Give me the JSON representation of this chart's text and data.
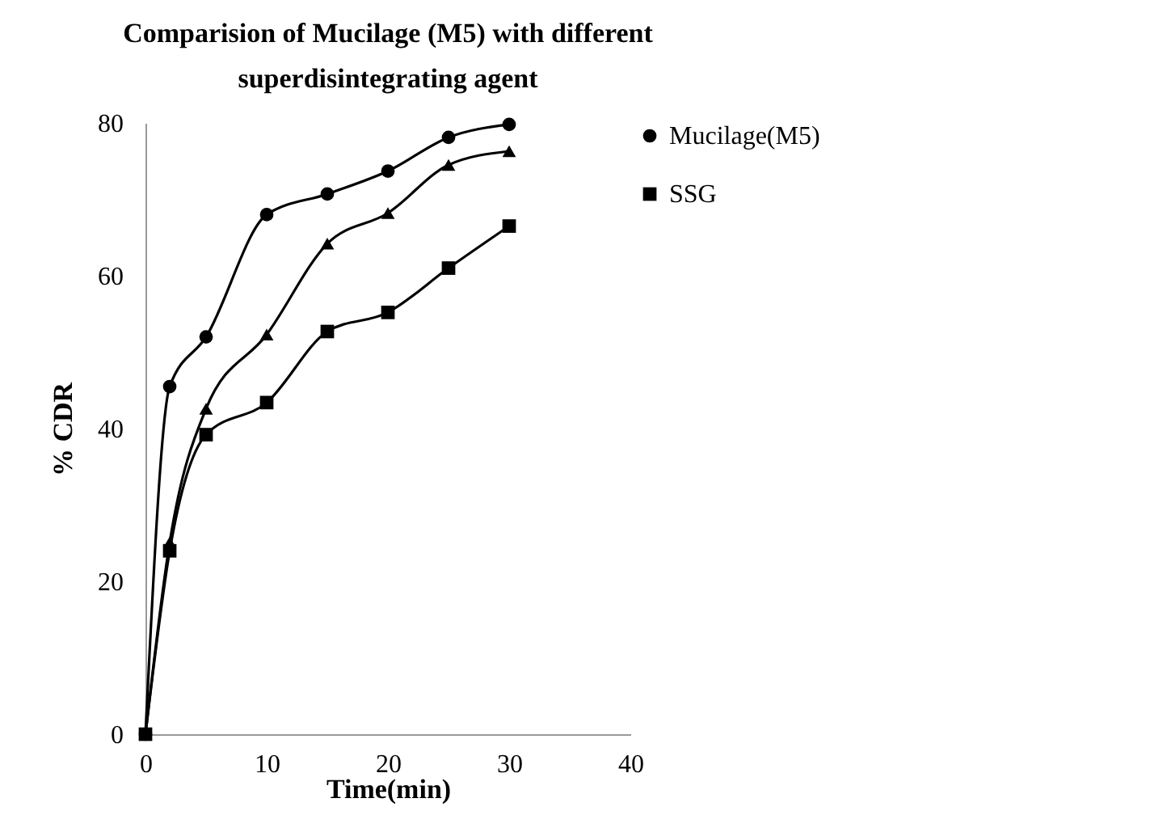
{
  "chart_data": {
    "type": "line",
    "title": [
      "Comparision of Mucilage (M5) with different",
      "superdisintegrating agent"
    ],
    "xlabel": "Time(min)",
    "ylabel": "% CDR",
    "x": [
      0,
      2,
      5,
      10,
      15,
      20,
      25,
      30
    ],
    "series": [
      {
        "name": "Mucilage(M5)",
        "color": "#000000",
        "marker": "circle",
        "values": [
          0,
          45.5,
          52,
          68,
          70.7,
          73.7,
          78.1,
          79.8
        ]
      },
      {
        "name": "SSG",
        "color": "#000000",
        "marker": "square",
        "values": [
          0,
          24,
          39.2,
          43.4,
          52.7,
          55.2,
          61,
          66.5
        ]
      },
      {
        "color": "#000000",
        "marker": "triangle",
        "values": [
          0,
          25.1,
          42.6,
          52.3,
          64.2,
          68.2,
          74.5,
          76.3
        ]
      }
    ],
    "xlim": [
      0,
      40
    ],
    "xticks": [
      0,
      10,
      20,
      30,
      40
    ],
    "ylim": [
      0,
      80
    ],
    "yticks": [
      0,
      20,
      40,
      60,
      80
    ],
    "grid": false,
    "legend": "right"
  }
}
